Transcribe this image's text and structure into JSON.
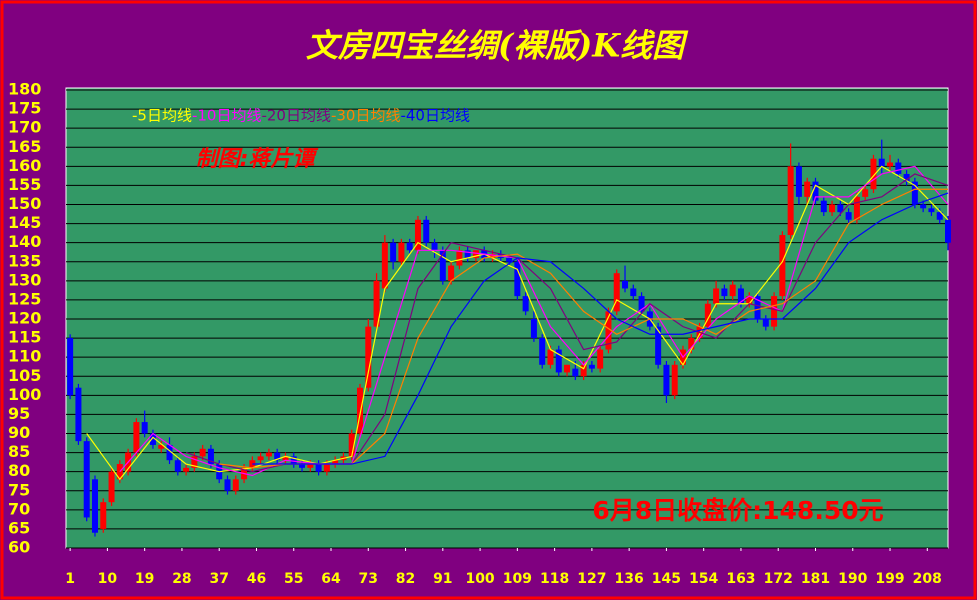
{
  "chart_data": {
    "type": "candlestick",
    "title": "文房四宝丝绸(裸版)K线图",
    "author": "制图:蒋片谭",
    "annotation": "6月8日收盘价:148.50元",
    "xlim": [
      0,
      213
    ],
    "ylim": [
      60,
      180
    ],
    "xticks": [
      1,
      10,
      19,
      28,
      37,
      46,
      55,
      64,
      73,
      82,
      91,
      100,
      109,
      118,
      127,
      136,
      145,
      154,
      163,
      172,
      181,
      190,
      199,
      208
    ],
    "yticks": [
      60,
      65,
      70,
      75,
      80,
      85,
      90,
      95,
      100,
      105,
      110,
      115,
      120,
      125,
      130,
      135,
      140,
      145,
      150,
      155,
      160,
      165,
      170,
      175,
      180
    ],
    "grid": true,
    "up_color": "#ff0000",
    "down_color": "#0000ff",
    "candles": {
      "x": [
        1,
        3,
        5,
        7,
        9,
        11,
        13,
        15,
        17,
        19,
        21,
        23,
        25,
        27,
        29,
        31,
        33,
        35,
        37,
        39,
        41,
        43,
        45,
        47,
        49,
        51,
        53,
        55,
        57,
        59,
        61,
        63,
        65,
        67,
        69,
        71,
        73,
        75,
        77,
        79,
        81,
        83,
        85,
        87,
        89,
        91,
        93,
        95,
        97,
        99,
        101,
        103,
        105,
        107,
        109,
        111,
        113,
        115,
        117,
        119,
        121,
        123,
        125,
        127,
        129,
        131,
        133,
        135,
        137,
        139,
        141,
        143,
        145,
        147,
        149,
        151,
        153,
        155,
        157,
        159,
        161,
        163,
        165,
        167,
        169,
        171,
        173,
        175,
        177,
        179,
        181,
        183,
        185,
        187,
        189,
        191,
        193,
        195,
        197,
        199,
        201,
        203,
        205,
        207,
        209,
        211,
        213
      ],
      "open": [
        115,
        102,
        88,
        78,
        65,
        72,
        78,
        80,
        85,
        93,
        90,
        86,
        87,
        83,
        80,
        81,
        84,
        86,
        82,
        78,
        75,
        78,
        81,
        83,
        84,
        85,
        83,
        84,
        82,
        81,
        82,
        80,
        82,
        83,
        84,
        90,
        102,
        118,
        128,
        140,
        135,
        140,
        138,
        146,
        140,
        138,
        130,
        134,
        138,
        136,
        138,
        136,
        137,
        136,
        135,
        126,
        120,
        115,
        108,
        112,
        106,
        107,
        105,
        108,
        107,
        112,
        122,
        130,
        128,
        126,
        122,
        118,
        108,
        100,
        108,
        112,
        115,
        118,
        124,
        128,
        126,
        128,
        124,
        126,
        120,
        118,
        126,
        142,
        160,
        152,
        156,
        151,
        148,
        150,
        148,
        146,
        152,
        154,
        162,
        160,
        161,
        158,
        156,
        150,
        149,
        148,
        146
      ],
      "high": [
        116,
        103,
        89,
        79,
        73,
        81,
        83,
        86,
        94,
        96,
        91,
        88,
        89,
        84,
        82,
        85,
        87,
        87,
        83,
        79,
        79,
        82,
        84,
        85,
        86,
        86,
        85,
        85,
        83,
        83,
        83,
        83,
        84,
        85,
        91,
        103,
        120,
        132,
        142,
        141,
        141,
        141,
        147,
        147,
        141,
        139,
        135,
        139,
        139,
        138,
        139,
        138,
        138,
        137,
        136,
        127,
        122,
        116,
        113,
        113,
        108,
        109,
        109,
        109,
        113,
        123,
        133,
        134,
        129,
        127,
        123,
        119,
        109,
        109,
        113,
        116,
        119,
        125,
        130,
        129,
        130,
        129,
        127,
        127,
        121,
        127,
        143,
        166,
        161,
        157,
        157,
        152,
        151,
        151,
        149,
        153,
        155,
        163,
        167,
        163,
        162,
        159,
        157,
        151,
        150,
        149,
        147
      ],
      "low": [
        99,
        87,
        67,
        63,
        64,
        71,
        77,
        79,
        84,
        89,
        86,
        85,
        82,
        79,
        79,
        80,
        83,
        81,
        77,
        74,
        74,
        77,
        80,
        82,
        83,
        82,
        82,
        81,
        80,
        80,
        79,
        79,
        81,
        82,
        83,
        89,
        101,
        117,
        127,
        133,
        134,
        137,
        137,
        139,
        136,
        129,
        129,
        133,
        135,
        135,
        135,
        135,
        135,
        134,
        125,
        121,
        114,
        107,
        107,
        105,
        105,
        104,
        104,
        106,
        106,
        111,
        121,
        127,
        125,
        121,
        117,
        107,
        98,
        99,
        107,
        111,
        114,
        117,
        123,
        125,
        125,
        123,
        123,
        119,
        117,
        117,
        125,
        141,
        150,
        150,
        150,
        147,
        147,
        147,
        145,
        145,
        151,
        153,
        158,
        159,
        157,
        155,
        149,
        148,
        147,
        145,
        138
      ],
      "close": [
        100,
        88,
        68,
        64,
        72,
        80,
        82,
        85,
        93,
        90,
        87,
        87,
        83,
        80,
        81,
        84,
        86,
        82,
        78,
        75,
        78,
        81,
        83,
        84,
        85,
        83,
        84,
        82,
        81,
        82,
        80,
        82,
        83,
        84,
        90,
        102,
        118,
        130,
        140,
        135,
        140,
        138,
        146,
        140,
        138,
        130,
        134,
        138,
        136,
        138,
        136,
        137,
        136,
        135,
        126,
        122,
        115,
        108,
        112,
        106,
        108,
        105,
        108,
        107,
        112,
        122,
        132,
        128,
        126,
        122,
        118,
        108,
        100,
        108,
        112,
        115,
        118,
        124,
        128,
        126,
        129,
        124,
        126,
        120,
        118,
        126,
        142,
        160,
        152,
        156,
        151,
        148,
        150,
        148,
        146,
        152,
        154,
        162,
        160,
        161,
        158,
        156,
        150,
        149,
        148,
        146,
        140
      ]
    },
    "ma_x": [
      5,
      13,
      21,
      29,
      37,
      45,
      53,
      61,
      69,
      77,
      85,
      93,
      101,
      109,
      117,
      125,
      133,
      141,
      149,
      157,
      165,
      173,
      181,
      189,
      197,
      205,
      213
    ],
    "series": [
      {
        "name": "-5日均线",
        "color": "#ffff00",
        "values": [
          90,
          78,
          89,
          82,
          80,
          81,
          84,
          82,
          84,
          128,
          140,
          135,
          137,
          133,
          112,
          107,
          125,
          120,
          108,
          124,
          124,
          135,
          155,
          150,
          160,
          155,
          146
        ]
      },
      {
        "name": "-10日均线",
        "color": "#ff00ff",
        "values": [
          null,
          80,
          90,
          84,
          81,
          79,
          83,
          82,
          82,
          110,
          138,
          138,
          137,
          136,
          118,
          108,
          118,
          124,
          110,
          120,
          126,
          122,
          152,
          152,
          158,
          160,
          150
        ]
      },
      {
        "name": "-20日均线",
        "color": "#800080",
        "values": [
          null,
          null,
          null,
          85,
          82,
          80,
          82,
          82,
          82,
          95,
          128,
          140,
          138,
          136,
          128,
          112,
          114,
          124,
          118,
          115,
          124,
          122,
          140,
          150,
          152,
          158,
          155
        ]
      },
      {
        "name": "-30日均线",
        "color": "#ff8000",
        "values": [
          null,
          null,
          null,
          null,
          82,
          81,
          82,
          82,
          82,
          90,
          115,
          130,
          136,
          137,
          132,
          122,
          116,
          120,
          120,
          116,
          122,
          124,
          130,
          145,
          150,
          154,
          154
        ]
      },
      {
        "name": "-40日均线",
        "color": "#0000ff",
        "values": [
          null,
          null,
          null,
          null,
          null,
          82,
          82,
          82,
          82,
          84,
          100,
          118,
          130,
          136,
          135,
          128,
          120,
          116,
          116,
          118,
          120,
          120,
          128,
          140,
          146,
          150,
          153
        ]
      }
    ]
  }
}
